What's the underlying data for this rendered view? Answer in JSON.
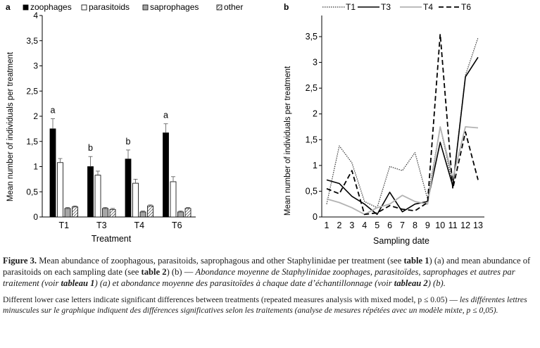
{
  "charts": {
    "a": {
      "panel_label": "a",
      "legend": {
        "zoophages": "zoophages",
        "parasitoids": "parasitoids",
        "saprophages": "saprophages",
        "other": "other"
      },
      "ylabel": "Mean number of individuals per treatment",
      "xlabel": "Treatment"
    },
    "b": {
      "panel_label": "b",
      "legend": {
        "T1": "T1",
        "T3": "T3",
        "T4": "T4",
        "T6": "T6"
      },
      "ylabel": "Mean number of individuals per treatment",
      "xlabel": "Sampling date"
    }
  },
  "chart_data": [
    {
      "type": "bar",
      "panel": "a",
      "categories": [
        "T1",
        "T3",
        "T4",
        "T6"
      ],
      "series": [
        {
          "name": "zoophages",
          "values": [
            1.75,
            1.0,
            1.15,
            1.67
          ],
          "errors": [
            0.2,
            0.2,
            0.18,
            0.18
          ],
          "fill": "#000000",
          "pattern": "solid"
        },
        {
          "name": "parasitoids",
          "values": [
            1.08,
            0.83,
            0.67,
            0.7
          ],
          "errors": [
            0.08,
            0.08,
            0.08,
            0.1
          ],
          "fill": "#ffffff",
          "pattern": "open"
        },
        {
          "name": "saprophages",
          "values": [
            0.17,
            0.17,
            0.1,
            0.1
          ],
          "errors": [
            0.02,
            0.02,
            0.02,
            0.02
          ],
          "fill": "#a6a6a6",
          "pattern": "gray"
        },
        {
          "name": "other",
          "values": [
            0.2,
            0.15,
            0.22,
            0.17
          ],
          "errors": [
            0.02,
            0.02,
            0.02,
            0.02
          ],
          "fill": "#ffffff",
          "pattern": "hatch"
        }
      ],
      "significance_letters": [
        "a",
        "b",
        "b",
        "a"
      ],
      "yticks": [
        "0",
        "0,5",
        "1",
        "1,5",
        "2",
        "2,5",
        "3",
        "3,5",
        "4"
      ],
      "ylim": [
        0,
        4
      ],
      "xlabel": "Treatment",
      "ylabel": "Mean number of individuals per treatment",
      "legend_position": "top"
    },
    {
      "type": "line",
      "panel": "b",
      "x": [
        1,
        2,
        3,
        4,
        5,
        6,
        7,
        8,
        9,
        10,
        11,
        12,
        13
      ],
      "series": [
        {
          "name": "T1",
          "values": [
            0.25,
            1.38,
            1.05,
            0.3,
            0.18,
            0.98,
            0.9,
            1.25,
            0.35,
            1.75,
            0.62,
            2.75,
            3.48
          ],
          "style": "dotted",
          "color": "#333333"
        },
        {
          "name": "T3",
          "values": [
            0.72,
            0.65,
            0.4,
            0.25,
            0.05,
            0.48,
            0.1,
            0.25,
            0.3,
            1.45,
            0.6,
            2.72,
            3.1
          ],
          "style": "solid",
          "color": "#000000"
        },
        {
          "name": "T4",
          "values": [
            0.35,
            0.28,
            0.18,
            0.05,
            0.18,
            0.25,
            0.42,
            0.3,
            0.25,
            1.75,
            0.75,
            1.75,
            1.73
          ],
          "style": "solid",
          "color": "#b3b3b3"
        },
        {
          "name": "T6",
          "values": [
            0.55,
            0.45,
            0.9,
            0.05,
            0.08,
            0.22,
            0.15,
            0.12,
            0.28,
            3.55,
            0.55,
            1.65,
            0.72
          ],
          "style": "dashed",
          "color": "#000000"
        }
      ],
      "xticks": [
        "1",
        "2",
        "3",
        "4",
        "5",
        "6",
        "7",
        "8",
        "9",
        "10",
        "11",
        "12",
        "13"
      ],
      "yticks": [
        "0",
        "0,5",
        "1",
        "1,5",
        "2",
        "2,5",
        "3",
        "3,5"
      ],
      "ylim": [
        0,
        3.5
      ],
      "xlabel": "Sampling date",
      "ylabel": "Mean number of individuals per treatment",
      "legend_position": "top"
    }
  ],
  "caption": {
    "main_bold": "Figure 3.",
    "main_1": " Mean abundance of zoophagous, parasitoids, saprophagous and other Staphylinidae per treatment (see ",
    "main_table1": "table 1",
    "main_2": ") (a) and mean abundance of parasitoids on each sampling date (see ",
    "main_table2": "table 2",
    "main_3": ") (b) — ",
    "main_fr_1": "Abondance moyenne de Staphylinidae zoophages, parasitoïdes, saprophages et autres par traitement (voir ",
    "main_fr_table1": "tableau 1",
    "main_fr_2": ") (a) et abondance moyenne des parasitoïdes à chaque date d’échantillonnage (voir ",
    "main_fr_table2": "tableau 2",
    "main_fr_3": ") (b).",
    "note_en": "Different lower case letters indicate significant differences between treatments (repeated measures analysis with mixed model, p ≤ 0.05) — ",
    "note_fr": "les différentes lettres minuscules sur le graphique indiquent des différences significatives selon les traitements (analyse de mesures répétées avec un modèle mixte, p ≤ 0,05)."
  }
}
